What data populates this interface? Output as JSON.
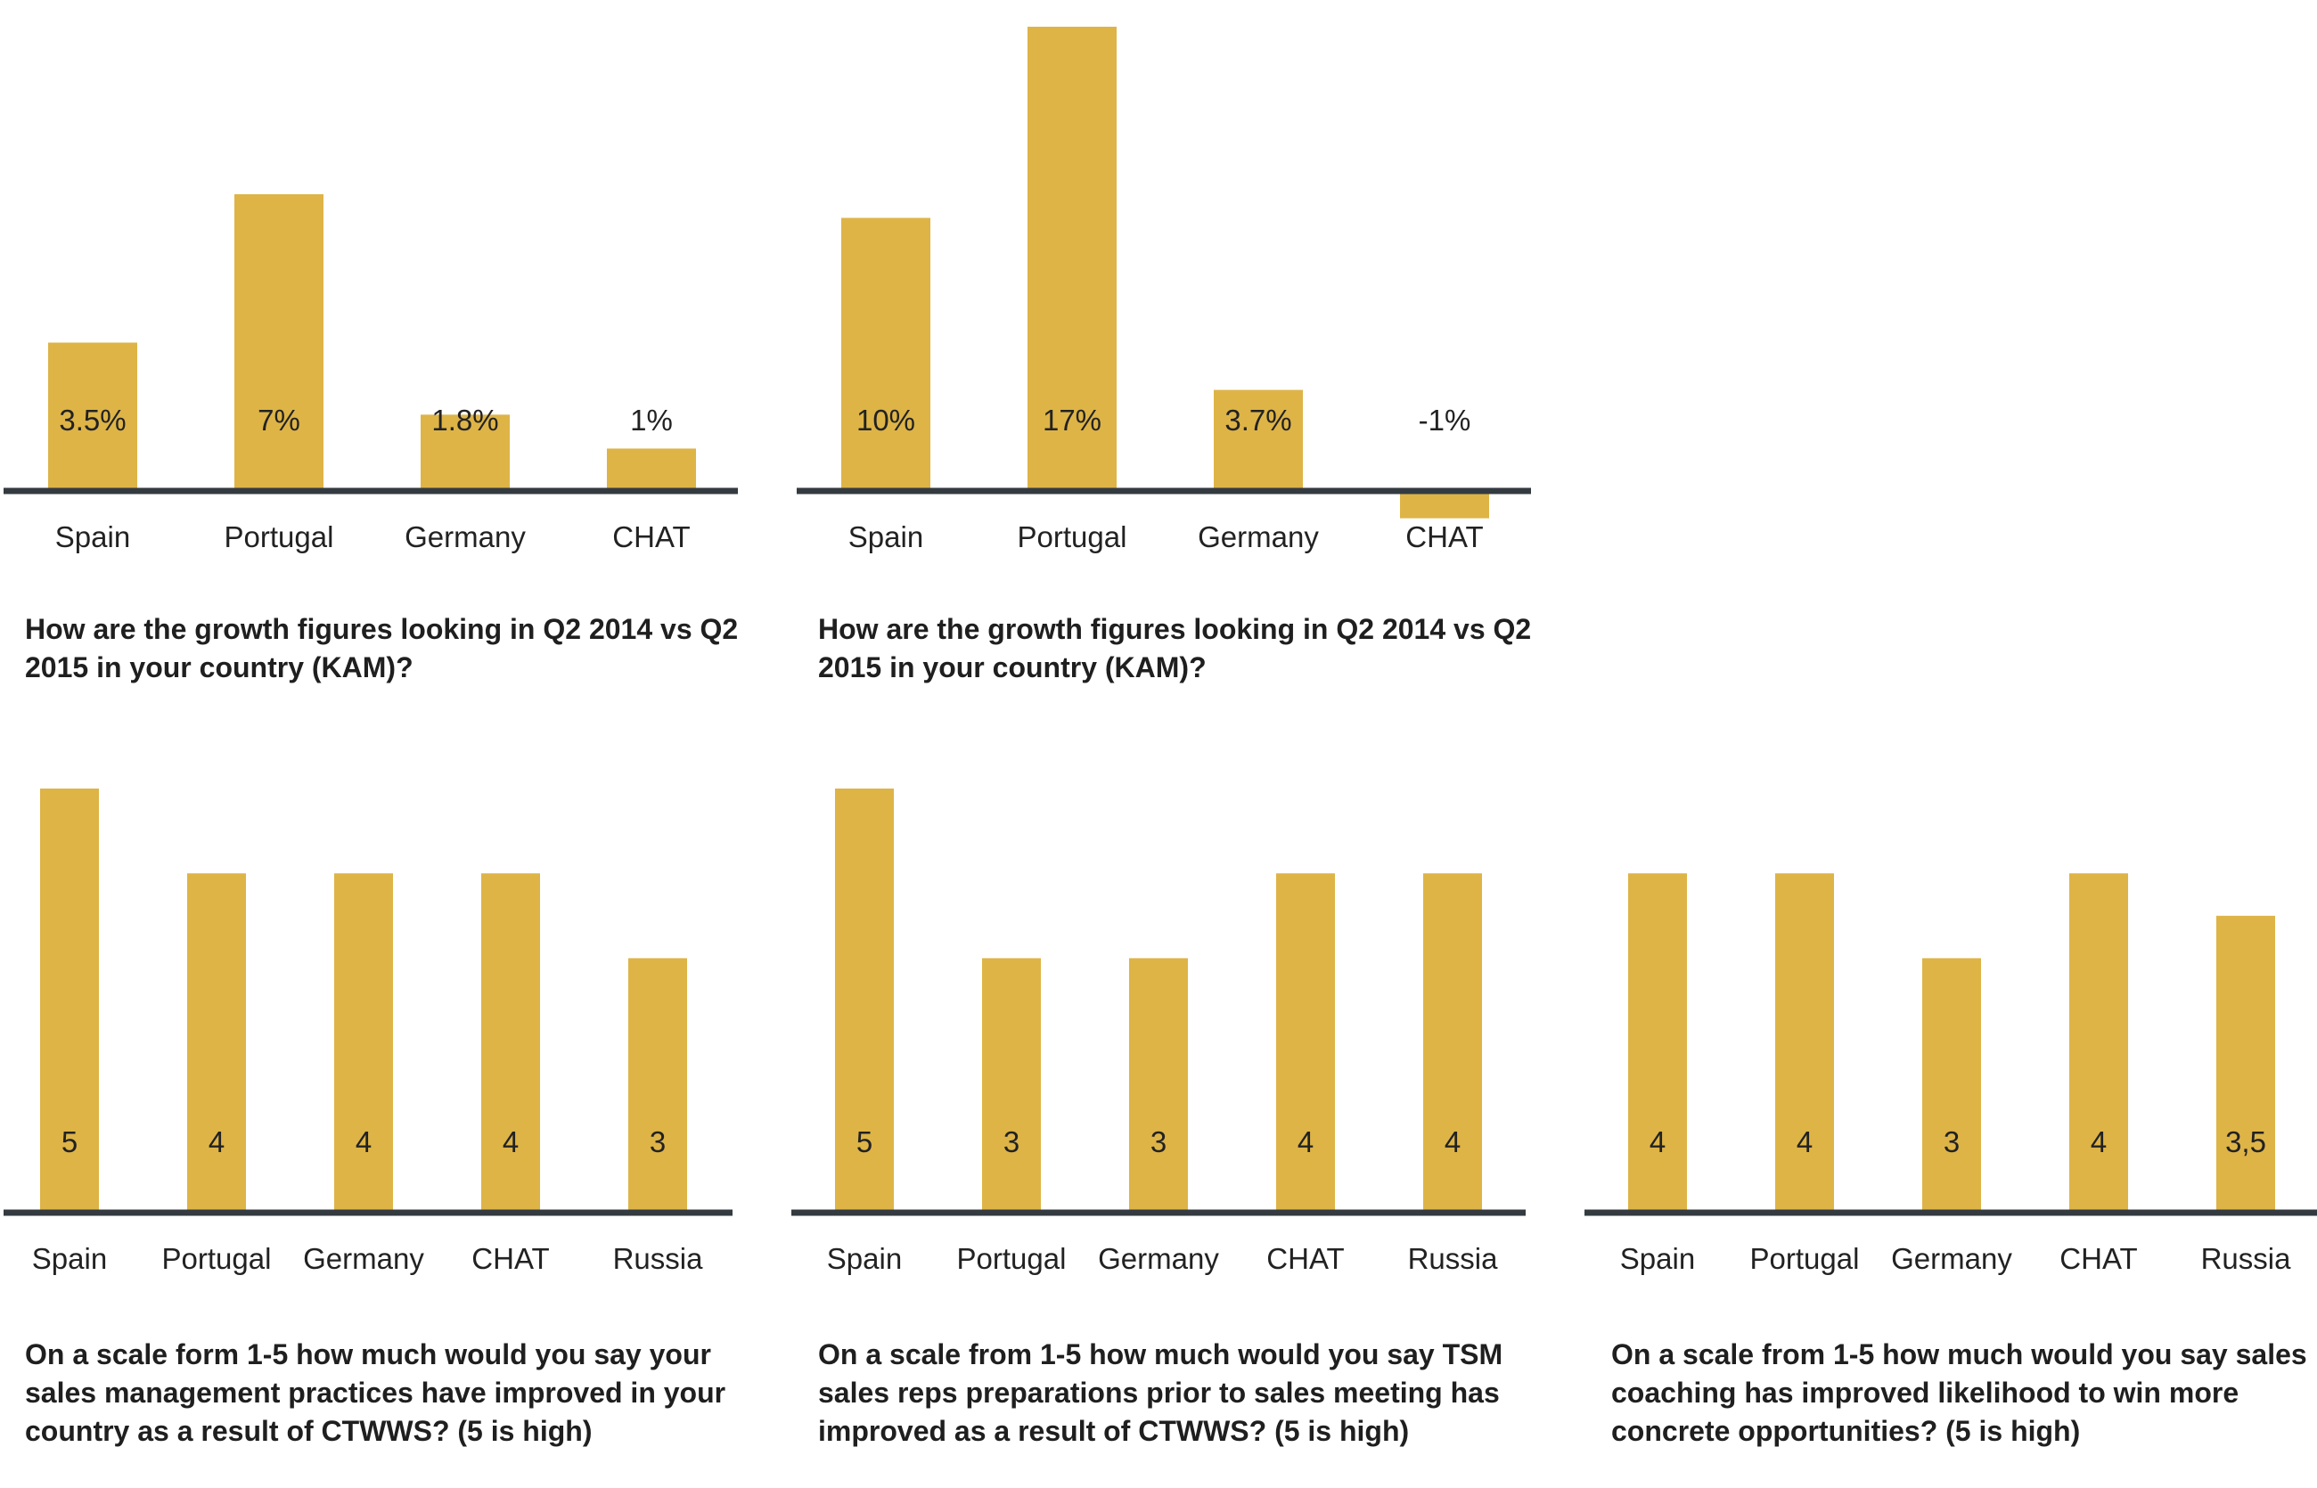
{
  "colors": {
    "bar": "#DEB447",
    "axis": "#333A40",
    "text": "#222222"
  },
  "chart_data": [
    {
      "type": "bar",
      "title": "How are the growth figures looking in Q2 2014 vs Q2\n2015 in your country (KAM)?",
      "categories": [
        "Spain",
        "Portugal",
        "Germany",
        "CHAT"
      ],
      "values": [
        3.5,
        7,
        1.8,
        1
      ],
      "value_labels": [
        "3.5%",
        "7%",
        "1.8%",
        "1%"
      ],
      "ylim": [
        -1,
        7
      ],
      "xlabel": "",
      "ylabel": ""
    },
    {
      "type": "bar",
      "title": "How are the growth figures looking in Q2 2014 vs Q2\n2015 in your country (KAM)?",
      "categories": [
        "Spain",
        "Portugal",
        "Germany",
        "CHAT"
      ],
      "values": [
        10,
        17,
        3.7,
        -1
      ],
      "value_labels": [
        "10%",
        "17%",
        "3.7%",
        "-1%"
      ],
      "ylim": [
        -1,
        17
      ],
      "xlabel": "",
      "ylabel": ""
    },
    {
      "type": "bar",
      "title": "On a scale form 1-5 how much would you say your\nsales management practices have improved in your\ncountry as a result of CTWWS? (5 is high)",
      "categories": [
        "Spain",
        "Portugal",
        "Germany",
        "CHAT",
        "Russia"
      ],
      "values": [
        5,
        4,
        4,
        4,
        3
      ],
      "value_labels": [
        "5",
        "4",
        "4",
        "4",
        "3"
      ],
      "ylim": [
        0,
        5
      ],
      "xlabel": "",
      "ylabel": ""
    },
    {
      "type": "bar",
      "title": "On  a scale from 1-5 how much would you say TSM\nsales reps preparations prior to sales meeting has\nimproved as a result of CTWWS? (5 is high)",
      "categories": [
        "Spain",
        "Portugal",
        "Germany",
        "CHAT",
        "Russia"
      ],
      "values": [
        5,
        3,
        3,
        4,
        4
      ],
      "value_labels": [
        "5",
        "3",
        "3",
        "4",
        "4"
      ],
      "ylim": [
        0,
        5
      ],
      "xlabel": "",
      "ylabel": ""
    },
    {
      "type": "bar",
      "title": "On a scale from 1-5 how much would you say sales\ncoaching has improved likelihood to win more\nconcrete opportunities? (5 is high)",
      "categories": [
        "Spain",
        "Portugal",
        "Germany",
        "CHAT",
        "Russia"
      ],
      "values": [
        4,
        4,
        3,
        4,
        3.5
      ],
      "value_labels": [
        "4",
        "4",
        "3",
        "4",
        "3,5"
      ],
      "ylim": [
        0,
        5
      ],
      "xlabel": "",
      "ylabel": ""
    }
  ]
}
